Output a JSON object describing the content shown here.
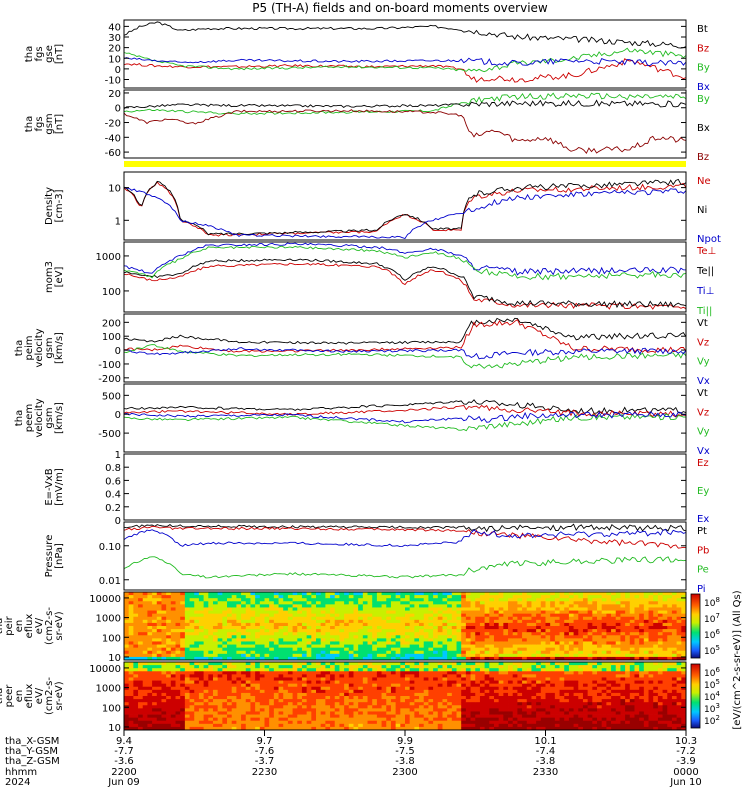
{
  "title": "P5 (TH-A) fields and on-board moments overview",
  "chart_data": [
    {
      "type": "line",
      "id": "fgs_gse",
      "ylabel": [
        "tha",
        "fgs",
        "gse",
        "[nT]"
      ],
      "ylim": [
        -18,
        46
      ],
      "ticks": [
        40,
        30,
        20,
        10,
        0,
        -10
      ],
      "legend": [
        {
          "name": "Bt",
          "color": "#000000"
        },
        {
          "name": "Bz",
          "color": "#cc0000"
        },
        {
          "name": "By",
          "color": "#22bb22"
        },
        {
          "name": "Bx",
          "color": "#0000cc"
        }
      ],
      "series": [
        {
          "name": "Bt",
          "x": [
            0,
            0.03,
            0.06,
            0.1,
            0.15,
            0.3,
            0.45,
            0.55,
            0.62,
            0.7,
            0.8,
            0.9,
            1.0
          ],
          "y": [
            32,
            40,
            44,
            36,
            38,
            38,
            38,
            40,
            36,
            30,
            28,
            25,
            22
          ]
        },
        {
          "name": "Bz",
          "x": [
            0,
            0.05,
            0.1,
            0.2,
            0.3,
            0.45,
            0.55,
            0.6,
            0.62,
            0.66,
            0.7,
            0.8,
            0.9,
            1.0
          ],
          "y": [
            5,
            3,
            2,
            2,
            3,
            2,
            3,
            0,
            -10,
            -8,
            -10,
            -6,
            8,
            -8
          ]
        },
        {
          "name": "By",
          "x": [
            0,
            0.05,
            0.1,
            0.2,
            0.4,
            0.55,
            0.62,
            0.7,
            0.8,
            0.9,
            1.0
          ],
          "y": [
            15,
            8,
            3,
            0,
            2,
            1,
            -2,
            5,
            10,
            18,
            12
          ]
        },
        {
          "name": "Bx",
          "x": [
            0,
            0.05,
            0.1,
            0.2,
            0.4,
            0.6,
            0.7,
            0.8,
            0.9,
            1.0
          ],
          "y": [
            10,
            8,
            6,
            8,
            7,
            8,
            5,
            8,
            6,
            5
          ]
        }
      ]
    },
    {
      "type": "line",
      "id": "fgs_gsm",
      "ylabel": [
        "tha",
        "fgs",
        "gsm",
        "[nT]"
      ],
      "ylim": [
        -68,
        24
      ],
      "ticks": [
        20,
        0,
        -20,
        -40,
        -60
      ],
      "legend": [
        {
          "name": "By",
          "color": "#22bb22"
        },
        {
          "name": "Bx",
          "color": "#000000"
        },
        {
          "name": "Bz",
          "color": "#8b0000"
        }
      ],
      "series": [
        {
          "name": "By",
          "x": [
            0,
            0.05,
            0.1,
            0.2,
            0.4,
            0.55,
            0.62,
            0.7,
            0.8,
            1.0
          ],
          "y": [
            -5,
            -3,
            -5,
            -8,
            -6,
            -4,
            10,
            15,
            16,
            14
          ]
        },
        {
          "name": "Bx",
          "x": [
            0,
            0.05,
            0.1,
            0.2,
            0.4,
            0.55,
            0.62,
            0.7,
            0.8,
            1.0
          ],
          "y": [
            0,
            2,
            4,
            3,
            2,
            3,
            5,
            6,
            6,
            5
          ]
        },
        {
          "name": "Bz",
          "x": [
            0,
            0.04,
            0.08,
            0.12,
            0.2,
            0.4,
            0.55,
            0.6,
            0.62,
            0.66,
            0.7,
            0.75,
            0.8,
            0.9,
            0.95,
            1.0
          ],
          "y": [
            -8,
            -20,
            -15,
            -22,
            -5,
            -4,
            -6,
            -10,
            -40,
            -30,
            -45,
            -40,
            -58,
            -56,
            -40,
            -45
          ]
        }
      ]
    },
    {
      "type": "line",
      "id": "density",
      "log": true,
      "ylabel": [
        "Density",
        "[cm-3]"
      ],
      "ylim": [
        0.25,
        30
      ],
      "ticks": [
        10,
        1
      ],
      "legend": [
        {
          "name": "Ne",
          "color": "#cc0000"
        },
        {
          "name": "Ni",
          "color": "#000000"
        },
        {
          "name": "Npot",
          "color": "#0000cc"
        }
      ],
      "series": [
        {
          "name": "Ne",
          "x": [
            0,
            0.03,
            0.06,
            0.1,
            0.15,
            0.3,
            0.45,
            0.5,
            0.55,
            0.6,
            0.62,
            0.7,
            0.8,
            0.9,
            1.0
          ],
          "y": [
            10,
            2,
            14,
            1,
            0.35,
            0.4,
            0.45,
            1.5,
            0.5,
            0.5,
            5,
            8,
            9,
            10,
            11
          ]
        },
        {
          "name": "Ni",
          "x": [
            0,
            0.03,
            0.06,
            0.1,
            0.15,
            0.3,
            0.45,
            0.5,
            0.55,
            0.6,
            0.62,
            0.7,
            0.8,
            0.9,
            1.0
          ],
          "y": [
            11,
            2.2,
            15,
            1.1,
            0.38,
            0.42,
            0.5,
            1.6,
            0.55,
            0.55,
            6,
            10,
            11,
            13,
            15
          ]
        },
        {
          "name": "Npot",
          "x": [
            0,
            0.1,
            0.2,
            0.5,
            0.62,
            0.7,
            0.8,
            0.9,
            1.0
          ],
          "y": [
            10,
            1,
            0.35,
            0.3,
            2,
            5,
            6,
            7,
            8
          ]
        }
      ]
    },
    {
      "type": "line",
      "id": "temperature",
      "log": true,
      "ylabel": [
        "mom3",
        "[eV]"
      ],
      "ylim": [
        25,
        2500
      ],
      "ticks": [
        1000,
        100
      ],
      "legend": [
        {
          "name": "Te⊥",
          "color": "#cc0000"
        },
        {
          "name": "Te||",
          "color": "#000000"
        },
        {
          "name": "Ti⊥",
          "color": "#0000cc"
        },
        {
          "name": "Ti||",
          "color": "#22bb22"
        }
      ],
      "series": [
        {
          "name": "Te⊥",
          "x": [
            0,
            0.05,
            0.1,
            0.15,
            0.3,
            0.45,
            0.5,
            0.55,
            0.6,
            0.62,
            0.7,
            1.0
          ],
          "y": [
            300,
            200,
            250,
            500,
            600,
            500,
            150,
            400,
            200,
            60,
            40,
            35
          ]
        },
        {
          "name": "Te||",
          "x": [
            0,
            0.05,
            0.1,
            0.15,
            0.3,
            0.45,
            0.5,
            0.55,
            0.6,
            0.62,
            0.7,
            1.0
          ],
          "y": [
            350,
            250,
            300,
            700,
            800,
            600,
            200,
            500,
            250,
            70,
            45,
            40
          ]
        },
        {
          "name": "Ti⊥",
          "x": [
            0,
            0.05,
            0.1,
            0.15,
            0.3,
            0.45,
            0.5,
            0.55,
            0.6,
            0.62,
            0.7,
            1.0
          ],
          "y": [
            500,
            300,
            1000,
            2000,
            2200,
            1800,
            1200,
            1600,
            1000,
            500,
            350,
            400
          ]
        },
        {
          "name": "Ti||",
          "x": [
            0,
            0.05,
            0.1,
            0.15,
            0.3,
            0.45,
            0.5,
            0.55,
            0.6,
            0.62,
            0.7,
            1.0
          ],
          "y": [
            400,
            250,
            800,
            1700,
            1800,
            1400,
            900,
            1300,
            800,
            400,
            250,
            300
          ]
        }
      ]
    },
    {
      "type": "line",
      "id": "peim_velocity",
      "ylabel": [
        "tha",
        "peim",
        "velocity",
        "gsm",
        "[km/s]"
      ],
      "ylim": [
        -230,
        260
      ],
      "ticks": [
        200,
        100,
        0,
        -100,
        -200
      ],
      "legend": [
        {
          "name": "Vt",
          "color": "#000000"
        },
        {
          "name": "Vz",
          "color": "#cc0000"
        },
        {
          "name": "Vy",
          "color": "#22bb22"
        },
        {
          "name": "Vx",
          "color": "#0000cc"
        }
      ],
      "series": [
        {
          "name": "Vt",
          "x": [
            0,
            0.05,
            0.1,
            0.2,
            0.4,
            0.6,
            0.62,
            0.7,
            0.8,
            1.0
          ],
          "y": [
            80,
            60,
            100,
            60,
            50,
            60,
            200,
            220,
            90,
            110
          ]
        },
        {
          "name": "Vz",
          "x": [
            0,
            0.05,
            0.1,
            0.2,
            0.4,
            0.6,
            0.62,
            0.7,
            0.8,
            1.0
          ],
          "y": [
            10,
            0,
            30,
            -10,
            0,
            20,
            180,
            200,
            10,
            0
          ]
        },
        {
          "name": "Vy",
          "x": [
            0,
            0.05,
            0.1,
            0.2,
            0.4,
            0.6,
            0.62,
            0.7,
            0.8,
            1.0
          ],
          "y": [
            -20,
            40,
            -10,
            -40,
            -30,
            -50,
            -120,
            -100,
            -50,
            -40
          ]
        },
        {
          "name": "Vx",
          "x": [
            0,
            0.05,
            0.1,
            0.2,
            0.4,
            0.6,
            0.62,
            0.7,
            0.8,
            1.0
          ],
          "y": [
            0,
            -30,
            -20,
            10,
            -10,
            0,
            -50,
            -20,
            -10,
            -5
          ]
        }
      ]
    },
    {
      "type": "line",
      "id": "peem_velocity",
      "ylabel": [
        "tha",
        "peem",
        "velocity",
        "gsm",
        "[km/s]"
      ],
      "ylim": [
        -1000,
        800
      ],
      "ticks": [
        500,
        0,
        -500
      ],
      "legend": [
        {
          "name": "Vt",
          "color": "#000000"
        },
        {
          "name": "Vz",
          "color": "#cc0000"
        },
        {
          "name": "Vy",
          "color": "#22bb22"
        },
        {
          "name": "Vx",
          "color": "#0000cc"
        }
      ],
      "series": [
        {
          "name": "Vt",
          "x": [
            0,
            0.1,
            0.3,
            0.5,
            0.6,
            0.65,
            0.7,
            0.8,
            1.0
          ],
          "y": [
            150,
            180,
            120,
            250,
            350,
            300,
            250,
            100,
            100
          ]
        },
        {
          "name": "Vz",
          "x": [
            0,
            0.1,
            0.3,
            0.5,
            0.6,
            0.65,
            0.7,
            0.8,
            1.0
          ],
          "y": [
            50,
            80,
            0,
            100,
            200,
            150,
            100,
            30,
            0
          ]
        },
        {
          "name": "Vy",
          "x": [
            0,
            0.1,
            0.3,
            0.5,
            0.6,
            0.65,
            0.7,
            0.8,
            1.0
          ],
          "y": [
            -100,
            -150,
            -80,
            -300,
            -400,
            -300,
            -250,
            -80,
            -60
          ]
        },
        {
          "name": "Vx",
          "x": [
            0,
            0.1,
            0.3,
            0.5,
            0.6,
            0.65,
            0.7,
            0.8,
            1.0
          ],
          "y": [
            0,
            -50,
            -20,
            -200,
            -100,
            -150,
            -50,
            -20,
            -10
          ]
        }
      ]
    },
    {
      "type": "line",
      "id": "efield",
      "ylabel": [
        "E=-VxB",
        "[mV/m]"
      ],
      "ylim": [
        0,
        1
      ],
      "ticks": [
        1.0,
        0.8,
        0.6,
        0.4,
        0.2,
        0.0
      ],
      "legend": [
        {
          "name": "Ez",
          "color": "#cc0000"
        },
        {
          "name": "Ey",
          "color": "#22bb22"
        },
        {
          "name": "Ex",
          "color": "#0000cc"
        }
      ],
      "series": []
    },
    {
      "type": "line",
      "id": "pressure",
      "log": true,
      "ylabel": [
        "Pressure",
        "[nPa]"
      ],
      "ylim": [
        0.005,
        0.5
      ],
      "ticks": [
        0.1,
        0.01
      ],
      "tick_labels": [
        "0.10",
        "0.01"
      ],
      "legend": [
        {
          "name": "Pt",
          "color": "#000000"
        },
        {
          "name": "Pb",
          "color": "#cc0000"
        },
        {
          "name": "Pe",
          "color": "#22bb22"
        },
        {
          "name": "Pi",
          "color": "#0000cc"
        }
      ],
      "series": [
        {
          "name": "Pt",
          "x": [
            0,
            0.05,
            0.1,
            0.3,
            0.5,
            0.6,
            0.62,
            0.8,
            1.0
          ],
          "y": [
            0.35,
            0.4,
            0.38,
            0.36,
            0.35,
            0.34,
            0.32,
            0.35,
            0.33
          ]
        },
        {
          "name": "Pb",
          "x": [
            0,
            0.05,
            0.1,
            0.3,
            0.5,
            0.6,
            0.62,
            0.7,
            0.8,
            0.9,
            1.0
          ],
          "y": [
            0.3,
            0.35,
            0.32,
            0.32,
            0.3,
            0.28,
            0.25,
            0.2,
            0.15,
            0.12,
            0.1
          ]
        },
        {
          "name": "Pe",
          "x": [
            0,
            0.05,
            0.1,
            0.15,
            0.3,
            0.5,
            0.6,
            0.62,
            0.7,
            0.8,
            1.0
          ],
          "y": [
            0.02,
            0.05,
            0.015,
            0.012,
            0.015,
            0.012,
            0.014,
            0.02,
            0.03,
            0.035,
            0.04
          ]
        },
        {
          "name": "Pi",
          "x": [
            0,
            0.05,
            0.1,
            0.15,
            0.3,
            0.5,
            0.6,
            0.62,
            0.7,
            0.8,
            1.0
          ],
          "y": [
            0.15,
            0.3,
            0.1,
            0.12,
            0.12,
            0.1,
            0.13,
            0.25,
            0.2,
            0.22,
            0.25
          ]
        }
      ]
    },
    {
      "type": "heatmap",
      "id": "peir_spec",
      "ylabel": [
        "tha",
        "peir",
        "en",
        "eflux",
        "eV/",
        "(cm2-s-",
        "sr-eV)"
      ],
      "ylim": [
        7,
        20000
      ],
      "log": true,
      "ticks": [
        10000,
        1000,
        100,
        10
      ],
      "tick_labels": [
        "10000",
        "1000",
        "100",
        "10"
      ]
    },
    {
      "type": "heatmap",
      "id": "peer_spec",
      "ylabel": [
        "tha",
        "peer",
        "en",
        "eflux",
        "eV/",
        "(cm2-s-",
        "sr-eV)"
      ],
      "ylim": [
        7,
        20000
      ],
      "log": true,
      "ticks": [
        10000,
        1000,
        100,
        10
      ],
      "tick_labels": [
        "10000",
        "1000",
        "100",
        "10"
      ]
    }
  ],
  "colorbar": {
    "label": "[eV/(cm^2-s-sr-eV)] (All Qs)",
    "ticks_top": [
      "10^8",
      "10^7",
      "10^6",
      "10^5"
    ],
    "ticks_bottom": [
      "10^6",
      "10^5",
      "10^4",
      "10^3",
      "10^2"
    ]
  },
  "xaxis": {
    "row_labels": [
      "tha_X-GSM",
      "tha_Y-GSM",
      "tha_Z-GSM",
      "hhmm",
      "2024"
    ],
    "ticks": [
      {
        "x": 0.0,
        "rows": [
          "9.4",
          "-7.7",
          "-3.6",
          "2200",
          "Jun 09"
        ]
      },
      {
        "x": 0.25,
        "rows": [
          "9.7",
          "-7.6",
          "-3.7",
          "2230",
          ""
        ]
      },
      {
        "x": 0.5,
        "rows": [
          "9.9",
          "-7.5",
          "-3.8",
          "2300",
          ""
        ]
      },
      {
        "x": 0.75,
        "rows": [
          "10.1",
          "-7.4",
          "-3.8",
          "2330",
          ""
        ]
      },
      {
        "x": 1.0,
        "rows": [
          "10.3",
          "-7.2",
          "-3.9",
          "0000",
          "Jun 10"
        ]
      }
    ]
  }
}
